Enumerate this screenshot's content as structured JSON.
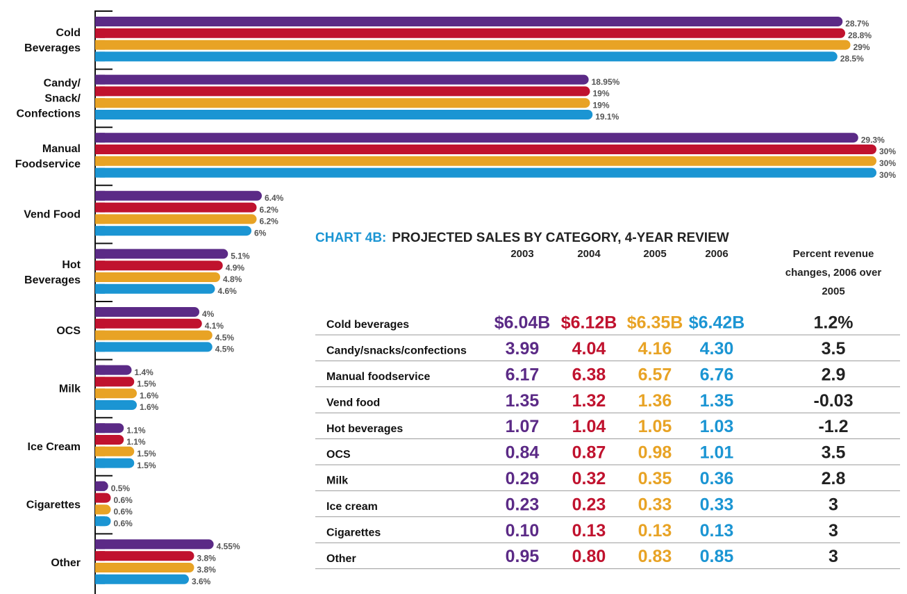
{
  "chart_data": {
    "type": "bar",
    "orientation": "horizontal",
    "categories": [
      "Cold\nBeverages",
      "Candy/\nSnack/\nConfections",
      "Manual\nFoodservice",
      "Vend Food",
      "Hot\nBeverages",
      "OCS",
      "Milk",
      "Ice Cream",
      "Cigarettes",
      "Other"
    ],
    "series": [
      {
        "color": "#5b2a86",
        "values": [
          28.7,
          18.95,
          29.3,
          6.4,
          5.1,
          4,
          1.4,
          1.1,
          0.5,
          4.55
        ],
        "value_labels": [
          "28.7%",
          "18.95%",
          "29.3%",
          "6.4%",
          "5.1%",
          "4%",
          "1.4%",
          "1.1%",
          "0.5%",
          "4.55%"
        ]
      },
      {
        "color": "#c0122e",
        "values": [
          28.8,
          19,
          30,
          6.2,
          4.9,
          4.1,
          1.5,
          1.1,
          0.6,
          3.8
        ],
        "value_labels": [
          "28.8%",
          "19%",
          "30%",
          "6.2%",
          "4.9%",
          "4.1%",
          "1.5%",
          "1.1%",
          "0.6%",
          "3.8%"
        ]
      },
      {
        "color": "#e8a325",
        "values": [
          29,
          19,
          30,
          6.2,
          4.8,
          4.5,
          1.6,
          1.5,
          0.6,
          3.8
        ],
        "value_labels": [
          "29%",
          "19%",
          "30%",
          "6.2%",
          "4.8%",
          "4.5%",
          "1.6%",
          "1.5%",
          "0.6%",
          "3.8%"
        ]
      },
      {
        "color": "#1b95d3",
        "values": [
          28.5,
          19.1,
          30,
          6,
          4.6,
          4.5,
          1.6,
          1.5,
          0.6,
          3.6
        ],
        "value_labels": [
          "28.5%",
          "19.1%",
          "30%",
          "6%",
          "4.6%",
          "4.5%",
          "1.6%",
          "1.5%",
          "0.6%",
          "3.6%"
        ]
      }
    ],
    "xlim": [
      0,
      30
    ]
  },
  "table": {
    "title_prefix": "CHART 4B:",
    "title": "PROJECTED SALES BY CATEGORY, 4-YEAR REVIEW",
    "columns": [
      "2003",
      "2004",
      "2005",
      "2006",
      "Percent revenue\nchanges, 2006 over\n2005"
    ],
    "column_colors": [
      "#5b2a86",
      "#c0122e",
      "#e8a325",
      "#1b95d3",
      "#222222"
    ],
    "rows": [
      [
        "Cold beverages",
        "$6.04B",
        "$6.12B",
        "$6.35B",
        "$6.42B",
        "1.2%"
      ],
      [
        "Candy/snacks/confections",
        "3.99",
        "4.04",
        "4.16",
        "4.30",
        "3.5"
      ],
      [
        "Manual foodservice",
        "6.17",
        "6.38",
        "6.57",
        "6.76",
        "2.9"
      ],
      [
        "Vend food",
        "1.35",
        "1.32",
        "1.36",
        "1.35",
        "-0.03"
      ],
      [
        "Hot beverages",
        "1.07",
        "1.04",
        "1.05",
        "1.03",
        "-1.2"
      ],
      [
        "OCS",
        "0.84",
        "0.87",
        "0.98",
        "1.01",
        "3.5"
      ],
      [
        "Milk",
        "0.29",
        "0.32",
        "0.35",
        "0.36",
        "2.8"
      ],
      [
        "Ice cream",
        "0.23",
        "0.23",
        "0.33",
        "0.33",
        "3"
      ],
      [
        "Cigarettes",
        "0.10",
        "0.13",
        "0.13",
        "0.13",
        "3"
      ],
      [
        "Other",
        "0.95",
        "0.80",
        "0.83",
        "0.85",
        "3"
      ]
    ]
  }
}
